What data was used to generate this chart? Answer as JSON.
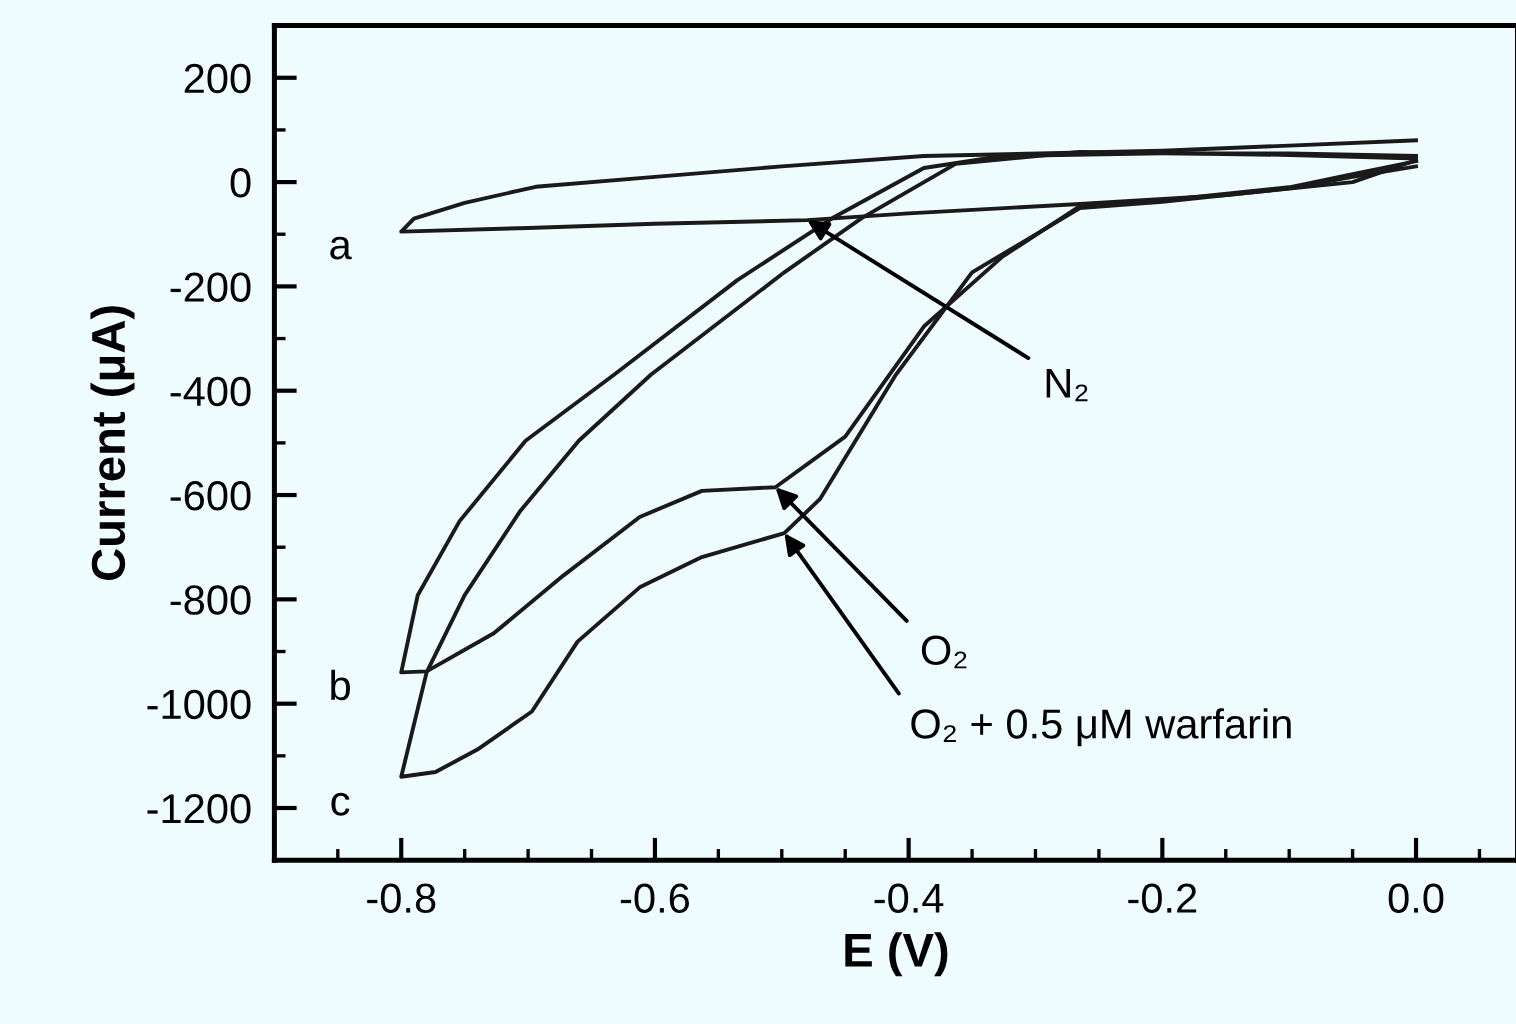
{
  "chart_data": {
    "type": "line",
    "xlabel": "E (V)",
    "ylabel": "Current (μA)",
    "xlim": [
      -0.9,
      0.08
    ],
    "ylim": [
      -1300,
      300
    ],
    "xticks": [
      {
        "value": -0.8,
        "label": "-0.8"
      },
      {
        "value": -0.6,
        "label": "-0.6"
      },
      {
        "value": -0.4,
        "label": "-0.4"
      },
      {
        "value": -0.2,
        "label": "-0.2"
      },
      {
        "value": 0.0,
        "label": "0.0"
      }
    ],
    "yticks": [
      {
        "value": -1200,
        "label": "-1200"
      },
      {
        "value": -1000,
        "label": "-1000"
      },
      {
        "value": -800,
        "label": "-800"
      },
      {
        "value": -600,
        "label": "-600"
      },
      {
        "value": -400,
        "label": "-400"
      },
      {
        "value": -200,
        "label": "-200"
      },
      0,
      200
    ],
    "grid": false,
    "legend": false,
    "marker": "none",
    "line_style": "solid",
    "series": [
      {
        "color": "#1a1a1a",
        "x": [
          0,
          -0.05,
          -0.15,
          -0.265,
          -0.4,
          -0.48,
          -0.6,
          -0.7,
          -0.8,
          -0.79,
          -0.75,
          -0.694,
          -0.6,
          -0.5,
          -0.388,
          -0.2,
          -0.1,
          0
        ],
        "values": [
          42,
          0,
          -25,
          -42,
          -60,
          -73,
          -80,
          -88,
          -95,
          -70,
          -40,
          -9,
          10,
          30,
          50,
          60,
          70,
          80
        ]
      },
      {
        "color": "#1a1a1a",
        "x": [
          0,
          -0.05,
          -0.1,
          -0.2,
          -0.265,
          -0.326,
          -0.388,
          -0.45,
          -0.505,
          -0.563,
          -0.612,
          -0.672,
          -0.727,
          -0.78,
          -0.8,
          -0.787,
          -0.754,
          -0.702,
          -0.632,
          -0.535,
          -0.46,
          -0.388,
          -0.326,
          -0.2,
          -0.1,
          0
        ],
        "values": [
          40,
          15,
          -10,
          -35,
          -46,
          -143,
          -277,
          -488,
          -585,
          -592,
          -642,
          -754,
          -865,
          -938,
          -940,
          -792,
          -650,
          -496,
          -369,
          -188,
          -69,
          27,
          50,
          55,
          55,
          50
        ]
      },
      {
        "color": "#1a1a1a",
        "x": [
          0,
          -0.05,
          -0.1,
          -0.2,
          -0.265,
          -0.35,
          -0.41,
          -0.47,
          -0.498,
          -0.563,
          -0.612,
          -0.661,
          -0.697,
          -0.74,
          -0.773,
          -0.8,
          -0.78,
          -0.75,
          -0.706,
          -0.66,
          -0.603,
          -0.498,
          -0.437,
          -0.363,
          -0.265,
          -0.1,
          0
        ],
        "values": [
          30,
          10,
          -12,
          -38,
          -50,
          -173,
          -369,
          -608,
          -673,
          -719,
          -777,
          -881,
          -1015,
          -1088,
          -1131,
          -1140,
          -940,
          -792,
          -630,
          -496,
          -369,
          -173,
          -69,
          35,
          58,
          52,
          45
        ]
      }
    ],
    "annotations": [
      {
        "text": "a",
        "x": -0.8,
        "y": -95
      },
      {
        "text": "b",
        "x": -0.8,
        "y": -940
      },
      {
        "text": "c",
        "x": -0.8,
        "y": -1140
      },
      {
        "text": "N₂",
        "x": -0.48,
        "y": -73
      },
      {
        "text": "O₂",
        "x": -0.505,
        "y": -585
      },
      {
        "text": "O₂ + 0.5 μM warfarin",
        "x": -0.498,
        "y": -673
      }
    ]
  }
}
